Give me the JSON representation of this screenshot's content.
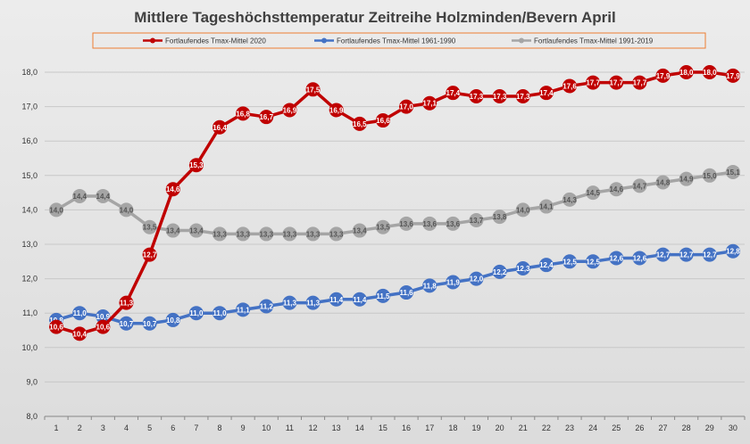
{
  "chart_data": {
    "type": "line",
    "title": "Mittlere Tageshöchsttemperatur Zeitreihe Holzminden/Bevern April",
    "xlabel": "",
    "ylabel": "",
    "ylim": [
      8.0,
      18.0
    ],
    "yticks": [
      "8,0",
      "9,0",
      "10,0",
      "11,0",
      "12,0",
      "13,0",
      "14,0",
      "15,0",
      "16,0",
      "17,0",
      "18,0"
    ],
    "yticks_values": [
      8,
      9,
      10,
      11,
      12,
      13,
      14,
      15,
      16,
      17,
      18
    ],
    "categories": [
      "1",
      "2",
      "3",
      "4",
      "5",
      "6",
      "7",
      "8",
      "9",
      "10",
      "11",
      "12",
      "13",
      "14",
      "15",
      "16",
      "17",
      "18",
      "19",
      "20",
      "21",
      "22",
      "23",
      "24",
      "25",
      "26",
      "27",
      "28",
      "29",
      "30"
    ],
    "grid": true,
    "legend_position": "top",
    "series": [
      {
        "name": "Fortlaufendes Tmax-Mittel 2020",
        "color": "#c00000",
        "label_color": "#ffffff",
        "values": [
          10.6,
          10.4,
          10.6,
          11.3,
          12.7,
          14.6,
          15.3,
          16.4,
          16.8,
          16.7,
          16.9,
          17.5,
          16.9,
          16.5,
          16.6,
          17.0,
          17.1,
          17.4,
          17.3,
          17.3,
          17.3,
          17.4,
          17.6,
          17.7,
          17.7,
          17.7,
          17.9,
          18.0,
          18.0,
          17.9
        ],
        "labels": [
          "10,6",
          "10,4",
          "10,6",
          "11,3",
          "12,7",
          "14,6",
          "15,3",
          "16,4",
          "16,8",
          "16,7",
          "16,9",
          "17,5",
          "16,9",
          "16,5",
          "16,6",
          "17,0",
          "17,1",
          "17,4",
          "17,3",
          "17,3",
          "17,3",
          "17,4",
          "17,6",
          "17,7",
          "17,7",
          "17,7",
          "17,9",
          "18,0",
          "18,0",
          "17,9"
        ]
      },
      {
        "name": "Fortlaufendes Tmax-Mittel 1961-1990",
        "color": "#4472c4",
        "label_color": "#ffffff",
        "values": [
          10.8,
          11.0,
          10.9,
          10.7,
          10.7,
          10.8,
          11.0,
          11.0,
          11.1,
          11.2,
          11.3,
          11.3,
          11.4,
          11.4,
          11.5,
          11.6,
          11.8,
          11.9,
          12.0,
          12.2,
          12.3,
          12.4,
          12.5,
          12.5,
          12.6,
          12.6,
          12.7,
          12.7,
          12.7,
          12.8
        ],
        "labels": [
          "10,8",
          "11,0",
          "10,9",
          "10,7",
          "10,7",
          "10,8",
          "11,0",
          "11,0",
          "11,1",
          "11,2",
          "11,3",
          "11,3",
          "11,4",
          "11,4",
          "11,5",
          "11,6",
          "11,8",
          "11,9",
          "12,0",
          "12,2",
          "12,3",
          "12,4",
          "12,5",
          "12,5",
          "12,6",
          "12,6",
          "12,7",
          "12,7",
          "12,7",
          "12,8"
        ]
      },
      {
        "name": "Fortlaufendes Tmax-Mittel 1991-2019",
        "color": "#a5a5a5",
        "label_color": "#555555",
        "values": [
          14.0,
          14.4,
          14.4,
          14.0,
          13.5,
          13.4,
          13.4,
          13.3,
          13.3,
          13.3,
          13.3,
          13.3,
          13.3,
          13.4,
          13.5,
          13.6,
          13.6,
          13.6,
          13.7,
          13.8,
          14.0,
          14.1,
          14.3,
          14.5,
          14.6,
          14.7,
          14.8,
          14.9,
          15.0,
          15.1
        ],
        "labels": [
          "14,0",
          "14,4",
          "14,4",
          "14,0",
          "13,5",
          "13,4",
          "13,4",
          "13,3",
          "13,3",
          "13,3",
          "13,3",
          "13,3",
          "13,3",
          "13,4",
          "13,5",
          "13,6",
          "13,6",
          "13,6",
          "13,7",
          "13,8",
          "14,0",
          "14,1",
          "14,3",
          "14,5",
          "14,6",
          "14,7",
          "14,8",
          "14,9",
          "15,0",
          "15,1"
        ]
      }
    ]
  }
}
